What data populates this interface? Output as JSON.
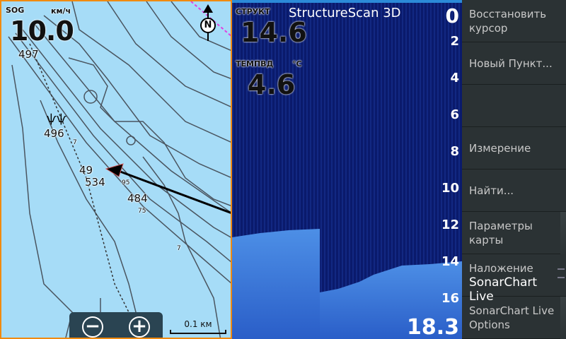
{
  "map": {
    "sog_label": "SOG",
    "sog_unit": "км/ч",
    "sog_value": "10.0",
    "depth_labels": [
      "497",
      "496",
      "49",
      "534",
      "484",
      "7",
      "7",
      "95",
      "75",
      "7"
    ],
    "north_label": "N",
    "zoom_out": "−",
    "zoom_in": "+",
    "scale": "0.1 км"
  },
  "sonar": {
    "title": "StructureScan 3D",
    "struct_label": "СТРУКТ",
    "struct_value": "14.6",
    "temp_label": "ТЕМПВД",
    "temp_unit": "°C",
    "temp_value": "4.6",
    "depth_ticks": [
      "0",
      "2",
      "4",
      "6",
      "8",
      "10",
      "12",
      "14",
      "16"
    ],
    "current_depth": "18.3"
  },
  "menu": {
    "items": [
      {
        "label": "Восстановить курсор"
      },
      {
        "label": "Новый Пункт..."
      },
      {
        "label": ""
      },
      {
        "label": "Измерение"
      },
      {
        "label": "Найти..."
      },
      {
        "label": "Параметры карты"
      },
      {
        "label": "Наложение",
        "value": "SonarChart Live"
      },
      {
        "label": "SonarChart Live Options"
      }
    ]
  }
}
